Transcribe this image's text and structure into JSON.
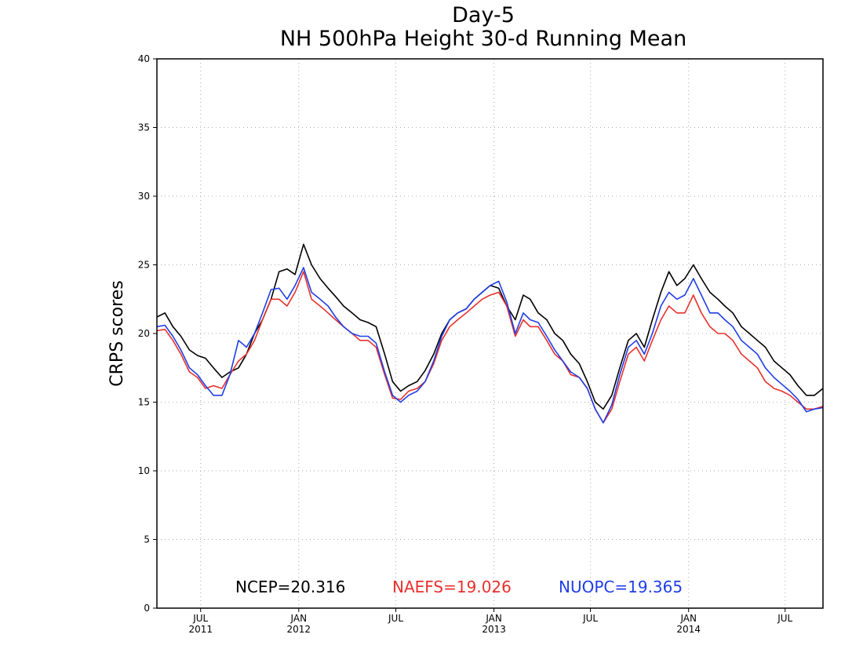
{
  "chart_data": {
    "type": "line",
    "title": "Day-5",
    "subtitle": "NH 500hPa Height 30-d Running Mean",
    "xlabel": "",
    "ylabel": "CRPS scores",
    "xlim": [
      "2011-04-10",
      "2014-09-10"
    ],
    "ylim": [
      0,
      40
    ],
    "yticks": [
      0,
      5,
      10,
      15,
      20,
      25,
      30,
      35,
      40
    ],
    "xticks": [
      {
        "date": "2011-07-01",
        "label": "JUL",
        "year": "2011"
      },
      {
        "date": "2012-01-01",
        "label": "JAN",
        "year": "2012"
      },
      {
        "date": "2012-07-01",
        "label": "JUL",
        "year": ""
      },
      {
        "date": "2013-01-01",
        "label": "JAN",
        "year": "2013"
      },
      {
        "date": "2013-07-01",
        "label": "JUL",
        "year": ""
      },
      {
        "date": "2014-01-01",
        "label": "JAN",
        "year": "2014"
      },
      {
        "date": "2014-07-01",
        "label": "JUL",
        "year": ""
      }
    ],
    "grid": true,
    "legend_position": "bottom-center",
    "series": [
      {
        "name": "NCEP",
        "color": "#000000",
        "x": [
          "2011-04-10",
          "2011-04-25",
          "2011-05-10",
          "2011-05-25",
          "2011-06-10",
          "2011-06-25",
          "2011-07-10",
          "2011-07-25",
          "2011-08-10",
          "2011-08-25",
          "2011-09-10",
          "2011-09-25",
          "2011-10-10",
          "2011-10-25",
          "2011-11-10",
          "2011-11-25",
          "2011-12-10",
          "2011-12-25",
          "2012-01-10",
          "2012-01-25",
          "2012-02-10",
          "2012-02-25",
          "2012-03-10",
          "2012-03-25",
          "2012-04-10",
          "2012-04-25",
          "2012-05-10",
          "2012-05-25",
          "2012-06-10",
          "2012-06-25",
          "2012-07-10",
          "2012-07-25",
          "2012-08-10",
          "2012-08-25",
          "2012-09-10",
          "2012-09-25",
          "2012-10-10",
          "2012-10-25",
          "2012-11-10",
          "2012-11-25",
          "2012-12-10",
          "2012-12-25",
          "2013-01-10",
          "2013-01-25",
          "2013-02-10",
          "2013-02-25",
          "2013-03-10",
          "2013-03-25",
          "2013-04-10",
          "2013-04-25",
          "2013-05-10",
          "2013-05-25",
          "2013-06-10",
          "2013-06-25",
          "2013-07-10",
          "2013-07-25",
          "2013-08-10",
          "2013-08-25",
          "2013-09-10",
          "2013-09-25",
          "2013-10-10",
          "2013-10-25",
          "2013-11-10",
          "2013-11-25",
          "2013-12-10",
          "2013-12-25",
          "2014-01-10",
          "2014-01-25",
          "2014-02-10",
          "2014-02-25",
          "2014-03-10",
          "2014-03-25",
          "2014-04-10",
          "2014-04-25",
          "2014-05-10",
          "2014-05-25",
          "2014-06-10",
          "2014-06-25",
          "2014-07-10",
          "2014-07-25",
          "2014-08-10",
          "2014-08-25",
          "2014-09-10"
        ],
        "values": [
          21.2,
          21.5,
          20.5,
          19.8,
          18.8,
          18.4,
          18.2,
          17.5,
          16.8,
          17.2,
          17.5,
          18.5,
          20.0,
          21.0,
          22.5,
          24.5,
          24.7,
          24.3,
          26.5,
          25.0,
          24.0,
          23.3,
          22.7,
          22.0,
          21.5,
          21.0,
          20.8,
          20.5,
          18.5,
          16.5,
          15.8,
          16.2,
          16.5,
          17.3,
          18.5,
          20.0,
          21.0,
          21.5,
          21.8,
          22.5,
          23.0,
          23.5,
          23.3,
          22.0,
          21.0,
          22.8,
          22.5,
          21.5,
          21.0,
          20.0,
          19.5,
          18.5,
          17.8,
          16.5,
          15.0,
          14.5,
          15.5,
          17.5,
          19.5,
          20.0,
          19.0,
          21.0,
          23.0,
          24.5,
          23.5,
          24.0,
          25.0,
          24.0,
          23.0,
          22.5,
          22.0,
          21.5,
          20.5,
          20.0,
          19.5,
          19.0,
          18.0,
          17.5,
          17.0,
          16.2,
          15.5,
          15.5,
          16.0
        ]
      },
      {
        "name": "NAEFS",
        "color": "#e8302c",
        "x": [
          "2011-04-10",
          "2011-04-25",
          "2011-05-10",
          "2011-05-25",
          "2011-06-10",
          "2011-06-25",
          "2011-07-10",
          "2011-07-25",
          "2011-08-10",
          "2011-08-25",
          "2011-09-10",
          "2011-09-25",
          "2011-10-10",
          "2011-10-25",
          "2011-11-10",
          "2011-11-25",
          "2011-12-10",
          "2011-12-25",
          "2012-01-10",
          "2012-01-25",
          "2012-02-10",
          "2012-02-25",
          "2012-03-10",
          "2012-03-25",
          "2012-04-10",
          "2012-04-25",
          "2012-05-10",
          "2012-05-25",
          "2012-06-10",
          "2012-06-25",
          "2012-07-10",
          "2012-07-25",
          "2012-08-10",
          "2012-08-25",
          "2012-09-10",
          "2012-09-25",
          "2012-10-10",
          "2012-10-25",
          "2012-11-10",
          "2012-11-25",
          "2012-12-10",
          "2012-12-25",
          "2013-01-10",
          "2013-01-25",
          "2013-02-10",
          "2013-02-25",
          "2013-03-10",
          "2013-03-25",
          "2013-04-10",
          "2013-04-25",
          "2013-05-10",
          "2013-05-25",
          "2013-06-10",
          "2013-06-25",
          "2013-07-10",
          "2013-07-25",
          "2013-08-10",
          "2013-08-25",
          "2013-09-10",
          "2013-09-25",
          "2013-10-10",
          "2013-10-25",
          "2013-11-10",
          "2013-11-25",
          "2013-12-10",
          "2013-12-25",
          "2014-01-10",
          "2014-01-25",
          "2014-02-10",
          "2014-02-25",
          "2014-03-10",
          "2014-03-25",
          "2014-04-10",
          "2014-04-25",
          "2014-05-10",
          "2014-05-25",
          "2014-06-10",
          "2014-06-25",
          "2014-07-10",
          "2014-07-25",
          "2014-08-10",
          "2014-08-25",
          "2014-09-10"
        ],
        "values": [
          20.2,
          20.3,
          19.5,
          18.5,
          17.2,
          16.8,
          16.0,
          16.2,
          16.0,
          17.0,
          18.0,
          18.5,
          19.5,
          21.0,
          22.5,
          22.5,
          22.0,
          23.0,
          24.5,
          22.5,
          22.0,
          21.5,
          21.0,
          20.5,
          20.0,
          19.5,
          19.5,
          19.0,
          17.0,
          15.3,
          15.2,
          15.8,
          16.0,
          16.5,
          17.8,
          19.5,
          20.5,
          21.0,
          21.5,
          22.0,
          22.5,
          22.8,
          23.0,
          22.0,
          19.8,
          21.0,
          20.5,
          20.5,
          19.5,
          18.5,
          18.0,
          17.0,
          16.8,
          16.0,
          14.5,
          13.5,
          14.5,
          16.5,
          18.5,
          19.0,
          18.0,
          19.5,
          21.0,
          22.0,
          21.5,
          21.5,
          22.8,
          21.5,
          20.5,
          20.0,
          20.0,
          19.5,
          18.5,
          18.0,
          17.5,
          16.5,
          16.0,
          15.8,
          15.5,
          15.0,
          14.5,
          14.5,
          14.7
        ]
      },
      {
        "name": "NUOPC",
        "color": "#1f3ee8",
        "x": [
          "2011-04-10",
          "2011-04-25",
          "2011-05-10",
          "2011-05-25",
          "2011-06-10",
          "2011-06-25",
          "2011-07-10",
          "2011-07-25",
          "2011-08-10",
          "2011-08-25",
          "2011-09-10",
          "2011-09-25",
          "2011-10-10",
          "2011-10-25",
          "2011-11-10",
          "2011-11-25",
          "2011-12-10",
          "2011-12-25",
          "2012-01-10",
          "2012-01-25",
          "2012-02-10",
          "2012-02-25",
          "2012-03-10",
          "2012-03-25",
          "2012-04-10",
          "2012-04-25",
          "2012-05-10",
          "2012-05-25",
          "2012-06-10",
          "2012-06-25",
          "2012-07-10",
          "2012-07-25",
          "2012-08-10",
          "2012-08-25",
          "2012-09-10",
          "2012-09-25",
          "2012-10-10",
          "2012-10-25",
          "2012-11-10",
          "2012-11-25",
          "2012-12-10",
          "2012-12-25",
          "2013-01-10",
          "2013-01-25",
          "2013-02-10",
          "2013-02-25",
          "2013-03-10",
          "2013-03-25",
          "2013-04-10",
          "2013-04-25",
          "2013-05-10",
          "2013-05-25",
          "2013-06-10",
          "2013-06-25",
          "2013-07-10",
          "2013-07-25",
          "2013-08-10",
          "2013-08-25",
          "2013-09-10",
          "2013-09-25",
          "2013-10-10",
          "2013-10-25",
          "2013-11-10",
          "2013-11-25",
          "2013-12-10",
          "2013-12-25",
          "2014-01-10",
          "2014-01-25",
          "2014-02-10",
          "2014-02-25",
          "2014-03-10",
          "2014-03-25",
          "2014-04-10",
          "2014-04-25",
          "2014-05-10",
          "2014-05-25",
          "2014-06-10",
          "2014-06-25",
          "2014-07-10",
          "2014-07-25",
          "2014-08-10",
          "2014-08-25",
          "2014-09-10"
        ],
        "values": [
          20.5,
          20.6,
          19.8,
          18.8,
          17.5,
          17.0,
          16.2,
          15.5,
          15.5,
          17.0,
          19.5,
          19.0,
          20.0,
          21.5,
          23.2,
          23.3,
          22.5,
          23.5,
          24.8,
          23.0,
          22.5,
          22.0,
          21.2,
          20.5,
          20.0,
          19.8,
          19.8,
          19.3,
          17.2,
          15.5,
          15.0,
          15.5,
          15.8,
          16.5,
          18.0,
          19.8,
          21.0,
          21.5,
          21.8,
          22.5,
          23.0,
          23.5,
          23.8,
          22.3,
          20.0,
          21.5,
          21.0,
          20.8,
          19.8,
          18.8,
          18.0,
          17.2,
          16.8,
          16.0,
          14.5,
          13.5,
          14.8,
          17.0,
          19.0,
          19.5,
          18.5,
          20.0,
          22.0,
          23.0,
          22.5,
          22.8,
          24.0,
          22.8,
          21.5,
          21.5,
          21.0,
          20.5,
          19.5,
          19.0,
          18.5,
          17.5,
          16.8,
          16.3,
          15.8,
          15.2,
          14.3,
          14.5,
          14.6
        ]
      }
    ],
    "annotations": [
      {
        "text": "NCEP=20.316",
        "color": "#000000"
      },
      {
        "text": "NAEFS=19.026",
        "color": "#e8302c"
      },
      {
        "text": "NUOPC=19.365",
        "color": "#1f3ee8"
      }
    ]
  }
}
